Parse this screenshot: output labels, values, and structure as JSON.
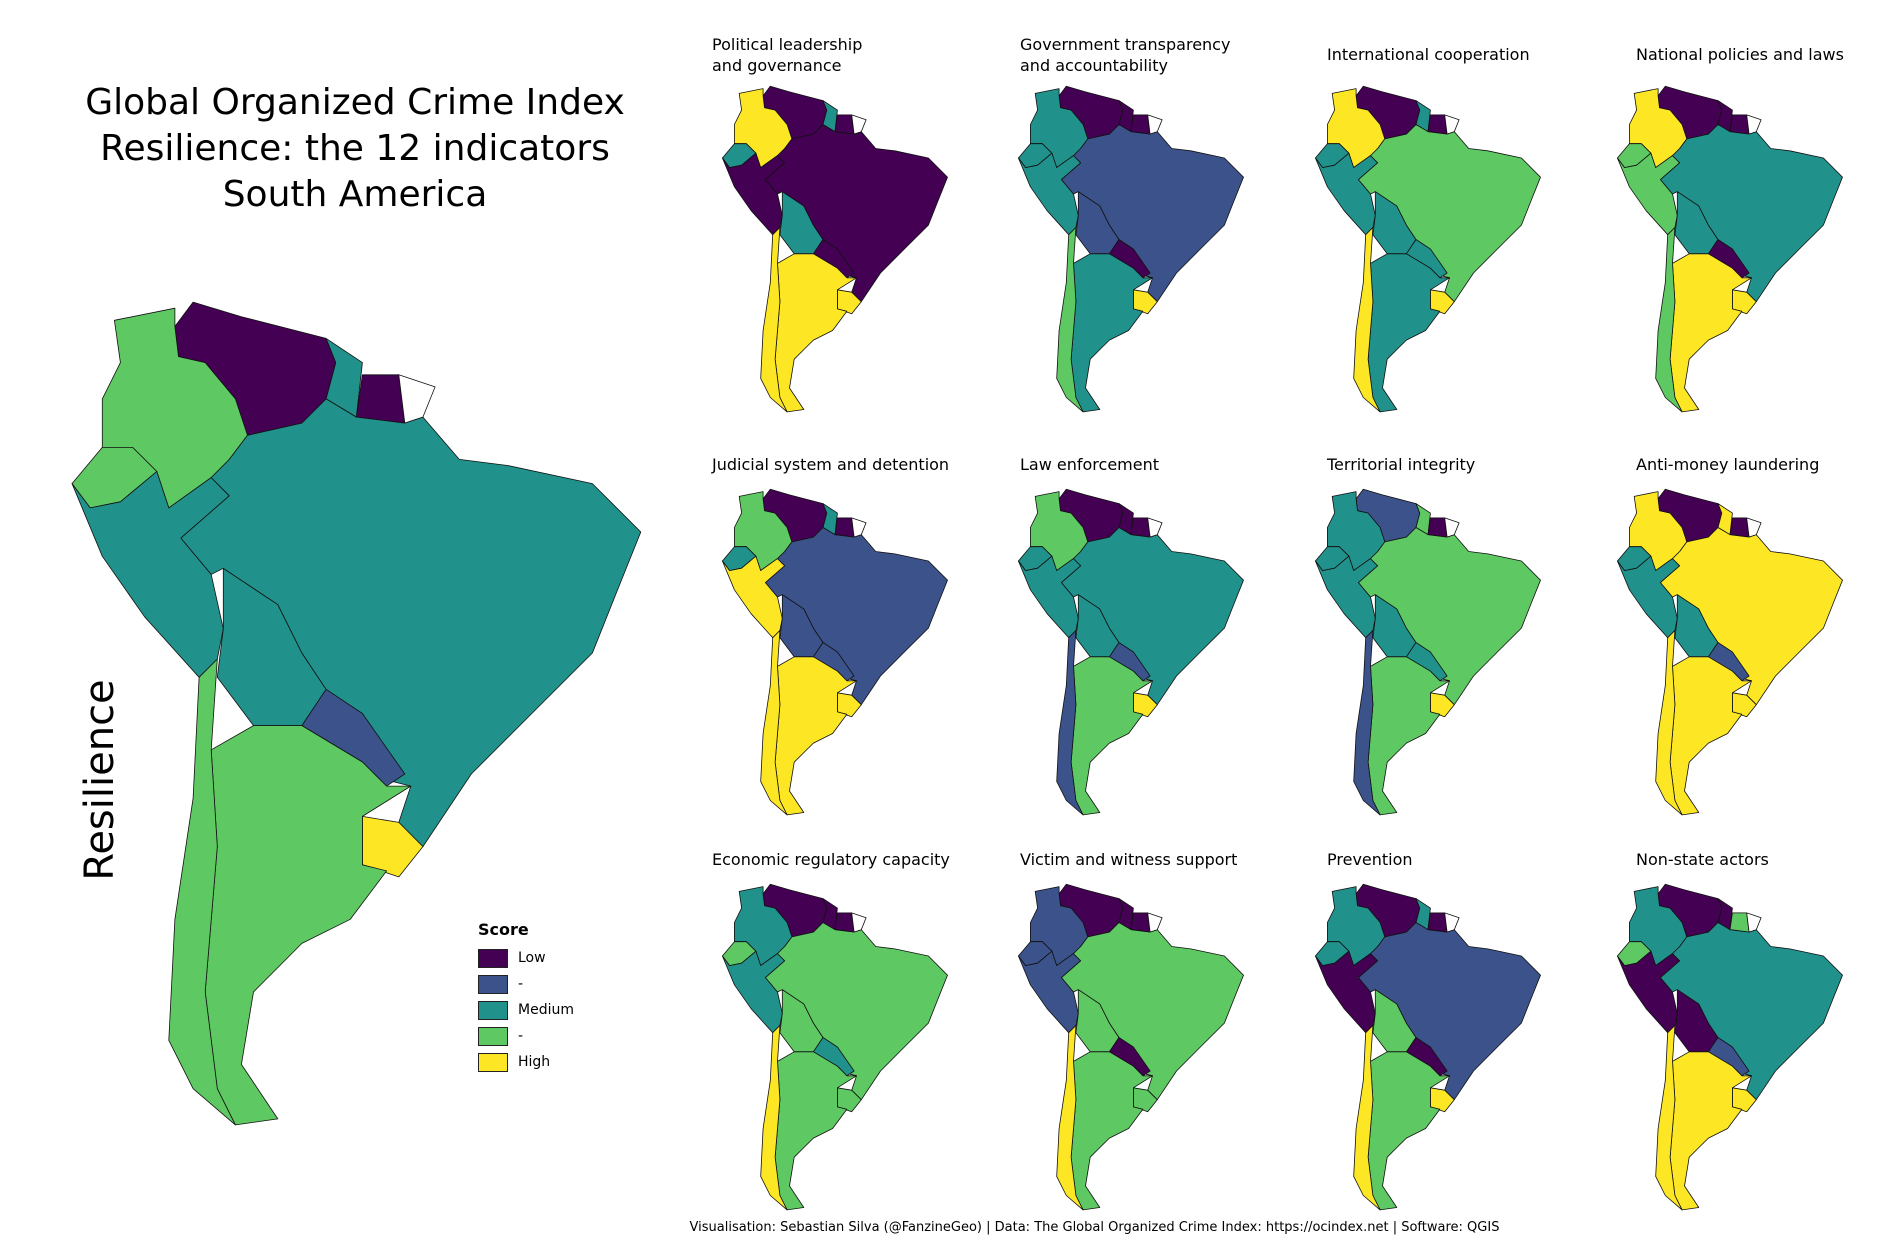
{
  "title_lines": [
    "Global Organized Crime Index",
    "Resilience: the 12 indicators",
    "South America"
  ],
  "side_label": "Resilience",
  "legend": {
    "title": "Score",
    "items": [
      {
        "label": "Low",
        "color": "#440154"
      },
      {
        "label": "-",
        "color": "#3b528b"
      },
      {
        "label": "Medium",
        "color": "#21918c"
      },
      {
        "label": "-",
        "color": "#5ec962"
      },
      {
        "label": "High",
        "color": "#fde725"
      }
    ]
  },
  "panels": [
    {
      "title_lines": [
        "Political leadership",
        "and governance"
      ]
    },
    {
      "title_lines": [
        "Government transparency",
        "and accountability"
      ]
    },
    {
      "title_lines": [
        "International cooperation"
      ]
    },
    {
      "title_lines": [
        "National policies and laws"
      ]
    },
    {
      "title_lines": [
        "Judicial system and detention"
      ]
    },
    {
      "title_lines": [
        "Law enforcement"
      ]
    },
    {
      "title_lines": [
        "Territorial integrity"
      ]
    },
    {
      "title_lines": [
        "Anti-money laundering"
      ]
    },
    {
      "title_lines": [
        "Economic regulatory capacity"
      ]
    },
    {
      "title_lines": [
        "Victim and witness support"
      ]
    },
    {
      "title_lines": [
        "Prevention"
      ]
    },
    {
      "title_lines": [
        "Non-state actors"
      ]
    }
  ],
  "footer": "Visualisation: Sebastian Silva (@FanzineGeo) | Data: The Global Organized Crime Index: https://ocindex.net | Software: QGIS"
}
